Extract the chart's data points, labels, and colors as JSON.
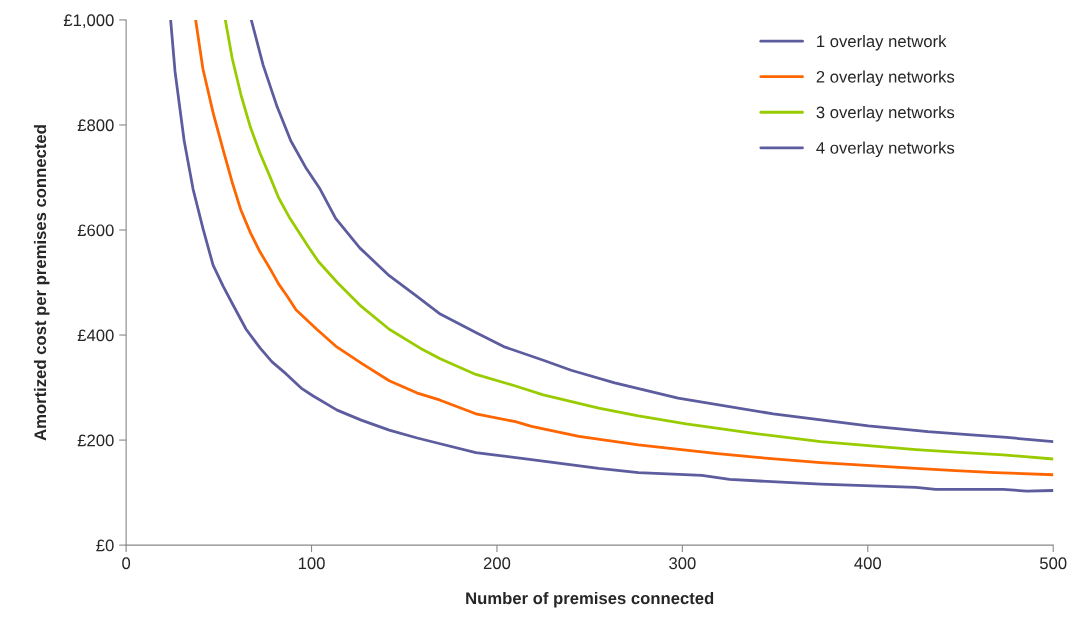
{
  "chart_data": {
    "type": "line",
    "xlabel": "Number of premises connected",
    "ylabel": "Amortized cost per premises connected",
    "xlim": [
      0,
      500
    ],
    "xticks": [
      0,
      100,
      200,
      300,
      400,
      500
    ],
    "ylim": [
      0,
      1000
    ],
    "yticks": [
      {
        "value": 0,
        "label": "£0"
      },
      {
        "value": 200,
        "label": "£200"
      },
      {
        "value": 400,
        "label": "£400"
      },
      {
        "value": 600,
        "label": "£600"
      },
      {
        "value": 800,
        "label": "£800"
      },
      {
        "value": 1000,
        "label": "£1,000"
      }
    ],
    "grid": false,
    "legend": "top right",
    "marker": "none",
    "line_style": "solid",
    "series": [
      {
        "name": "1 overlay network",
        "color": "#5c5c9e",
        "x": [
          24,
          26.4,
          31.3,
          36.1,
          41.5,
          46.9,
          52.3,
          57.1,
          64.7,
          72.3,
          78.7,
          86.3,
          94.4,
          100.9,
          113.8,
          126.8,
          141.9,
          157,
          169.4,
          188.6,
          218.6,
          254.9,
          276.3,
          310.5,
          325.5,
          374.6,
          426,
          436.6,
          473,
          485.8,
          500
        ],
        "values": [
          1000,
          901,
          770,
          678,
          602,
          533,
          493,
          461,
          411,
          375,
          349,
          326,
          299,
          284,
          257,
          238,
          219,
          204,
          193,
          176,
          163,
          146,
          138,
          133,
          125,
          116,
          110,
          106,
          106,
          103,
          104
        ]
      },
      {
        "name": "2 overlay networks",
        "color": "#ff6600",
        "x": [
          37.5,
          41.4,
          47,
          52.5,
          57.2,
          61.9,
          67,
          72.1,
          77.7,
          82.3,
          86.9,
          91.6,
          102.8,
          113,
          127,
          141.9,
          156.7,
          169.4,
          188.6,
          210,
          218.6,
          244.2,
          276.3,
          319,
          340.4,
          374.6,
          426,
          447.3,
          468.7,
          500
        ],
        "values": [
          1000,
          907,
          822,
          750,
          691,
          638,
          595,
          559,
          526,
          497,
          474,
          448,
          411,
          379,
          346,
          313,
          290,
          276,
          250,
          235,
          226,
          207,
          191,
          174,
          167,
          157,
          146,
          142,
          138,
          134
        ]
      },
      {
        "name": "3 overlay networks",
        "color": "#99cc00",
        "x": [
          53.5,
          57.2,
          61.9,
          67,
          72.1,
          77.3,
          82.3,
          87.9,
          92.6,
          98.1,
          103.7,
          113.9,
          127,
          141.9,
          158.6,
          169.4,
          188.6,
          210,
          225,
          254.9,
          276.3,
          302,
          340.4,
          374.6,
          426,
          447.3,
          473,
          500
        ],
        "values": [
          1000,
          927,
          858,
          796,
          747,
          704,
          661,
          625,
          599,
          569,
          540,
          500,
          454,
          411,
          375,
          355,
          325,
          303,
          286,
          261,
          246,
          231,
          212,
          197,
          182,
          177,
          172,
          164
        ]
      },
      {
        "name": "4 overlay networks",
        "color": "#5c5c9e",
        "x": [
          67.5,
          73.9,
          81.4,
          88.8,
          97.2,
          104.6,
          113,
          126,
          141.9,
          156.7,
          169.4,
          188.6,
          203.6,
          225,
          240,
          263.5,
          297.7,
          349,
          400.3,
          432.4,
          455.9,
          475.1,
          500
        ],
        "values": [
          1000,
          914,
          835,
          770,
          717,
          678,
          622,
          566,
          513,
          474,
          440,
          405,
          378,
          352,
          333,
          309,
          280,
          250,
          227,
          216,
          210,
          205,
          197
        ]
      }
    ]
  }
}
